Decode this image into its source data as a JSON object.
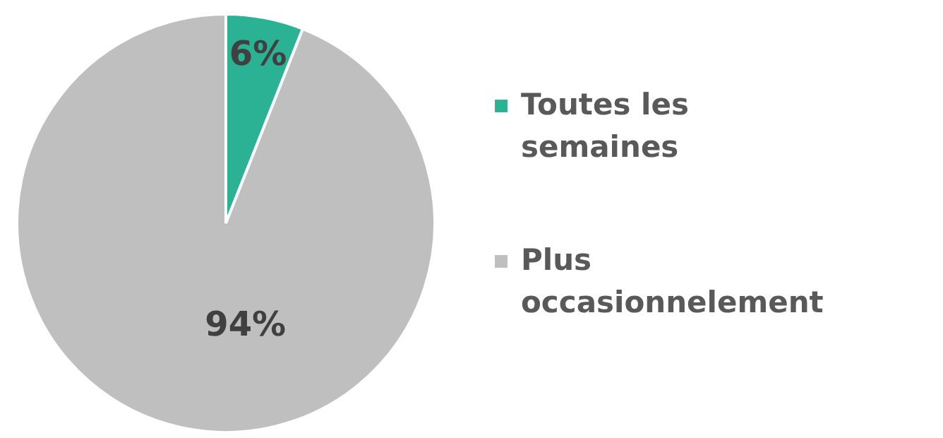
{
  "chart_data": {
    "type": "pie",
    "categories": [
      "Toutes les semaines",
      "Plus occasionnelement"
    ],
    "values": [
      6,
      94
    ],
    "colors": [
      "#2bb193",
      "#bfbfbf"
    ],
    "value_labels": [
      "6%",
      "94%"
    ],
    "legend": "right"
  }
}
